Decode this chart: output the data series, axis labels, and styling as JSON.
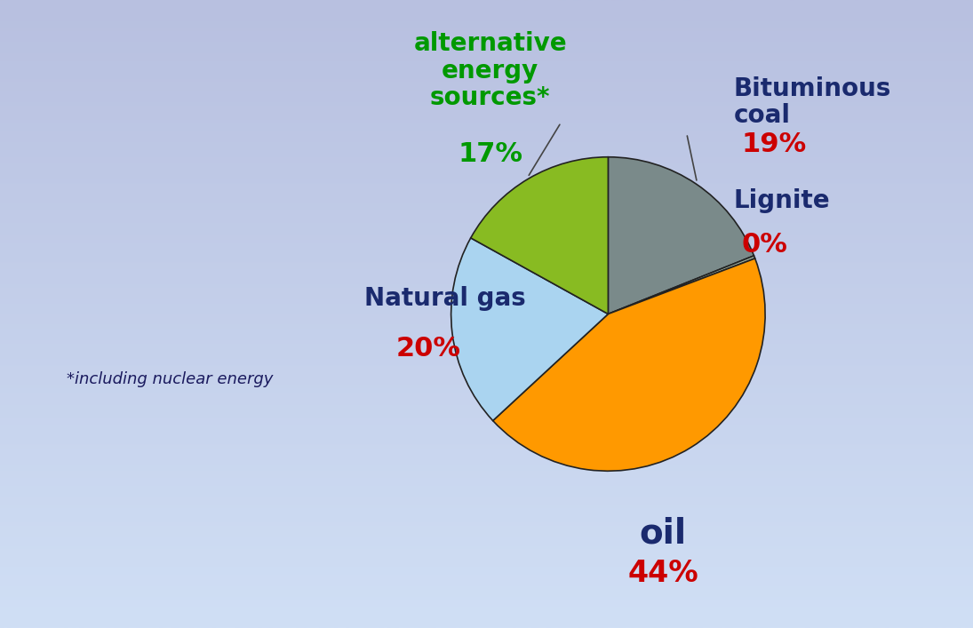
{
  "slices": [
    {
      "label": "Bituminous\ncoal",
      "pct_label": "19%",
      "value": 19,
      "color": "#7a8a8a",
      "text_color": "#1a2a6e",
      "pct_color": "#cc0000"
    },
    {
      "label": "Lignite",
      "pct_label": "0%",
      "value": 0.3,
      "color": "#9aaa9a",
      "text_color": "#1a2a6e",
      "pct_color": "#cc0000"
    },
    {
      "label": "oil",
      "pct_label": "44%",
      "value": 44,
      "color": "#ff9900",
      "text_color": "#1a2a6e",
      "pct_color": "#cc0000"
    },
    {
      "label": "Natural gas",
      "pct_label": "20%",
      "value": 20,
      "color": "#aad4f0",
      "text_color": "#1a2a6e",
      "pct_color": "#cc0000"
    },
    {
      "label": "alternative\nenergy\nsources*",
      "pct_label": "17%",
      "value": 17,
      "color": "#88bb22",
      "text_color": "#009900",
      "pct_color": "#009900"
    }
  ],
  "note": "*including nuclear energy",
  "note_color": "#1a1a5e",
  "bg_top": "#b8c0e0",
  "bg_bottom": "#d0dff5",
  "startangle": 90
}
